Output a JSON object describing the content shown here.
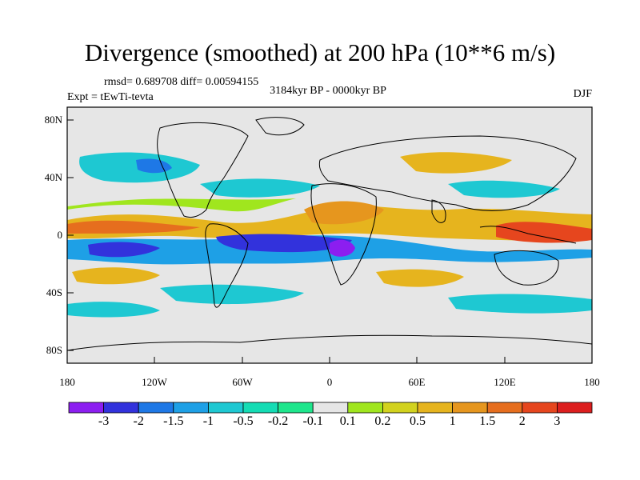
{
  "title": "Divergence (smoothed) at 200 hPa (10**6 m/s)",
  "stats": "rmsd= 0.689708 diff= 0.00594155",
  "period": "3184kyr BP - 0000kyr BP",
  "experiment": "Expt = tEwTi-tevta",
  "season": "DJF",
  "lat_ticks": [
    "80N",
    "40N",
    "0",
    "40S",
    "80S"
  ],
  "lon_ticks": [
    "180",
    "120W",
    "60W",
    "0",
    "60E",
    "120E",
    "180"
  ],
  "colorbar": {
    "labels": [
      "-3",
      "-2",
      "-1.5",
      "-1",
      "-0.5",
      "-0.2",
      "-0.1",
      "0.1",
      "0.2",
      "0.5",
      "1",
      "1.5",
      "2",
      "3"
    ],
    "colors": [
      "#8c1ef0",
      "#3232dc",
      "#1e78e6",
      "#1ea0e6",
      "#1ec8d2",
      "#14dcb4",
      "#1ee68c",
      "#e6e6e6",
      "#a0e61e",
      "#d2d21e",
      "#e6b41e",
      "#e6961e",
      "#e66e1e",
      "#e6461e",
      "#dc1e1e"
    ]
  },
  "colors": {
    "ocean_background": "#e6e6e6",
    "coastline": "#000000"
  }
}
